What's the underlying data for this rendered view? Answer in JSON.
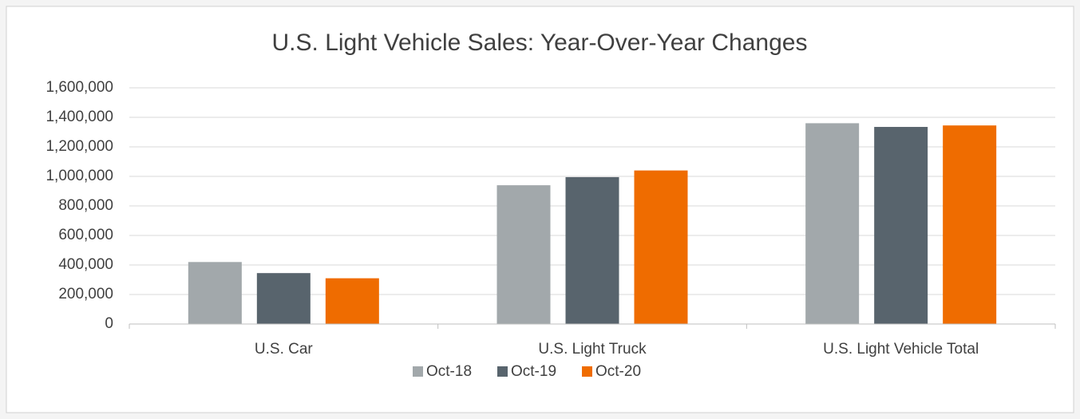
{
  "chart_data": {
    "type": "bar",
    "title": "U.S. Light Vehicle Sales: Year-Over-Year Changes",
    "categories": [
      "U.S. Car",
      "U.S. Light Truck",
      "U.S. Light Vehicle Total"
    ],
    "series": [
      {
        "name": "Oct-18",
        "color": "#a2a8ab",
        "values": [
          420000,
          940000,
          1360000
        ]
      },
      {
        "name": "Oct-19",
        "color": "#58646d",
        "values": [
          345000,
          995000,
          1335000
        ]
      },
      {
        "name": "Oct-20",
        "color": "#ef6c00",
        "values": [
          310000,
          1040000,
          1345000
        ]
      }
    ],
    "ylim": [
      0,
      1600000
    ],
    "yticks": [
      0,
      {
        "value": 200000,
        "label": "200,000"
      },
      {
        "value": 400000,
        "label": "400,000"
      },
      {
        "value": 600000,
        "label": "600,000"
      },
      {
        "value": 800000,
        "label": "800,000"
      },
      {
        "value": 1000000,
        "label": "1,000,000"
      },
      {
        "value": 1200000,
        "label": "1,200,000"
      },
      {
        "value": 1400000,
        "label": "1,400,000"
      },
      {
        "value": 1600000,
        "label": "1,600,000"
      }
    ],
    "grid": true,
    "legend": "bottom"
  }
}
